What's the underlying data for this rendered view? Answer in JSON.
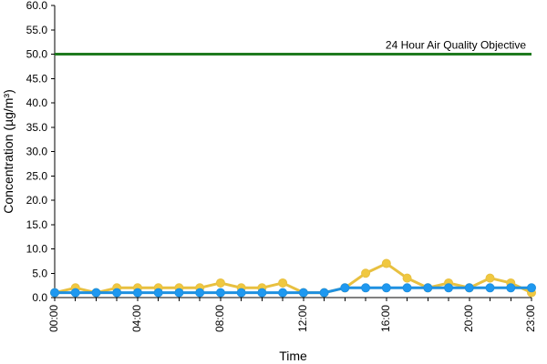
{
  "chart_data": {
    "type": "line",
    "title": "",
    "xlabel": "Time",
    "ylabel": "Concentration (µg/m³)",
    "ylim": [
      0,
      60
    ],
    "yticks": [
      "0.0",
      "5.0",
      "10.0",
      "15.0",
      "20.0",
      "25.0",
      "30.0",
      "35.0",
      "40.0",
      "45.0",
      "50.0",
      "55.0",
      "60.0"
    ],
    "x": [
      "00:00",
      "01:00",
      "02:00",
      "03:00",
      "04:00",
      "05:00",
      "06:00",
      "07:00",
      "08:00",
      "09:00",
      "10:00",
      "11:00",
      "12:00",
      "13:00",
      "14:00",
      "15:00",
      "16:00",
      "17:00",
      "18:00",
      "19:00",
      "20:00",
      "21:00",
      "22:00",
      "23:00"
    ],
    "xtick_labels": [
      "00:00",
      "04:00",
      "08:00",
      "12:00",
      "16:00",
      "20:00",
      "23:00"
    ],
    "grid": false,
    "legend": "none",
    "series": [
      {
        "color": "#e8c040",
        "marker_color": "#f0c840",
        "values": [
          1,
          2,
          1,
          2,
          2,
          2,
          2,
          2,
          3,
          2,
          2,
          3,
          1,
          1,
          2,
          5,
          7,
          4,
          2,
          3,
          2,
          4,
          3,
          1
        ]
      },
      {
        "color": "#1e90e0",
        "marker_color": "#1e98f0",
        "values": [
          1,
          1,
          1,
          1,
          1,
          1,
          1,
          1,
          1,
          1,
          1,
          1,
          1,
          1,
          2,
          2,
          2,
          2,
          2,
          2,
          2,
          2,
          2,
          2
        ]
      }
    ],
    "annotations": [
      {
        "text": "24 Hour Air Quality Objective",
        "y": 50,
        "color": "#1f7a1f"
      }
    ]
  }
}
